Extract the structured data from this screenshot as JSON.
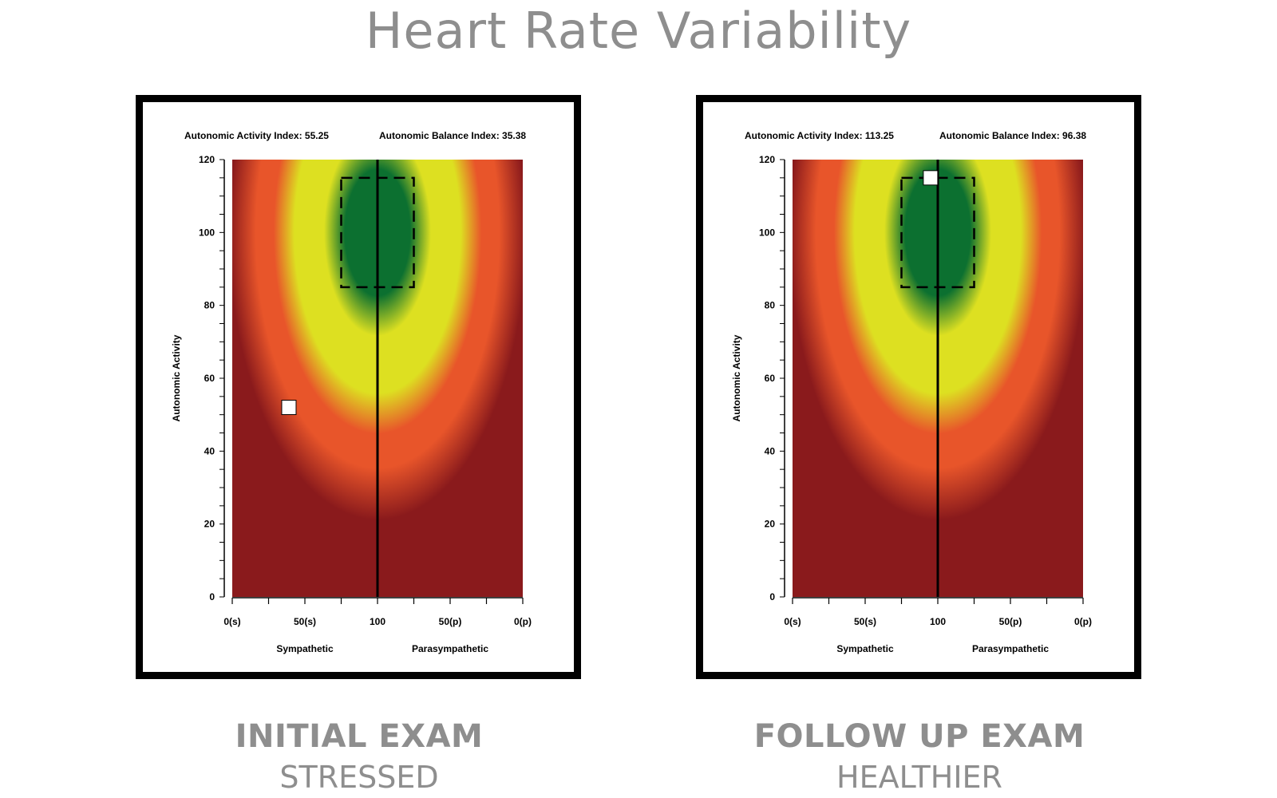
{
  "page": {
    "title": "Heart Rate Variability"
  },
  "chart_data": [
    {
      "type": "scatter",
      "title": "",
      "header_left": "Autonomic Activity Index: 55.25",
      "header_right": "Autonomic Balance Index: 35.38",
      "ylabel": "Autonomic Activity",
      "xlabel_left": "Sympathetic",
      "xlabel_right": "Parasympathetic",
      "y_ticks": [
        "0",
        "20",
        "40",
        "60",
        "80",
        "100",
        "120"
      ],
      "ylim": [
        0,
        120
      ],
      "x_ticks": [
        "0(s)",
        "50(s)",
        "100",
        "50(p)",
        "0(p)"
      ],
      "x_tick_positions": [
        0,
        50,
        100,
        150,
        200
      ],
      "xlim": [
        0,
        200
      ],
      "target_zone": {
        "x": [
          75,
          125
        ],
        "y": [
          85,
          115
        ]
      },
      "point": {
        "x": 39,
        "y": 52
      },
      "caption_title": "INITIAL EXAM",
      "caption_sub": "STRESSED"
    },
    {
      "type": "scatter",
      "title": "",
      "header_left": "Autonomic Activity Index: 113.25",
      "header_right": "Autonomic Balance Index: 96.38",
      "ylabel": "Autonomic Activity",
      "xlabel_left": "Sympathetic",
      "xlabel_right": "Parasympathetic",
      "y_ticks": [
        "0",
        "20",
        "40",
        "60",
        "80",
        "100",
        "120"
      ],
      "ylim": [
        0,
        120
      ],
      "x_ticks": [
        "0(s)",
        "50(s)",
        "100",
        "50(p)",
        "0(p)"
      ],
      "x_tick_positions": [
        0,
        50,
        100,
        150,
        200
      ],
      "xlim": [
        0,
        200
      ],
      "target_zone": {
        "x": [
          75,
          125
        ],
        "y": [
          85,
          115
        ]
      },
      "point": {
        "x": 95,
        "y": 115
      },
      "caption_title": "FOLLOW UP EXAM",
      "caption_sub": "HEALTHIER"
    }
  ],
  "colors": {
    "dark_red": "#8a1a1c",
    "orange": "#e8552a",
    "yellow": "#dde021",
    "green": "#0c7030",
    "frame": "#000000",
    "caption": "#8e8e8e"
  }
}
